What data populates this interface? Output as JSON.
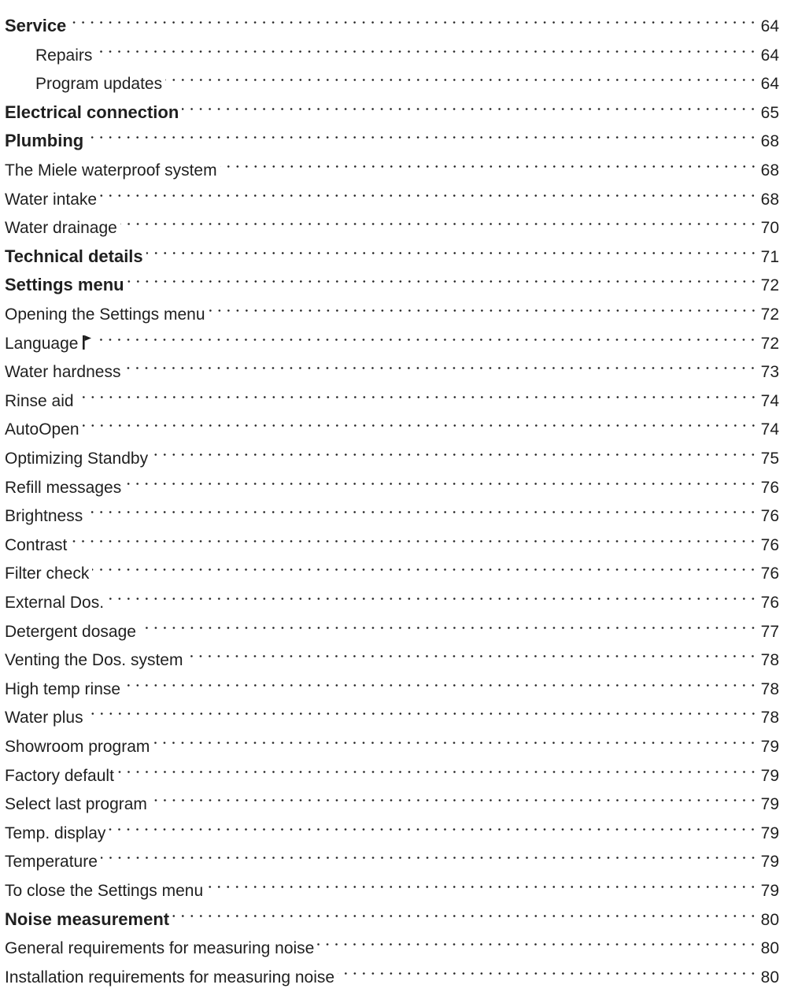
{
  "toc": [
    {
      "label": "Service",
      "page": "64",
      "level": "heading"
    },
    {
      "label": "Repairs",
      "page": "64",
      "level": "sub"
    },
    {
      "label": "Program updates",
      "page": "64",
      "level": "sub"
    },
    {
      "label": "Electrical connection",
      "page": "65",
      "level": "heading"
    },
    {
      "label": "Plumbing",
      "page": "68",
      "level": "heading"
    },
    {
      "label": "The Miele waterproof system",
      "page": "68",
      "level": "item"
    },
    {
      "label": "Water intake",
      "page": "68",
      "level": "item"
    },
    {
      "label": "Water drainage",
      "page": "70",
      "level": "item"
    },
    {
      "label": "Technical details",
      "page": "71",
      "level": "heading"
    },
    {
      "label": "Settings menu",
      "page": "72",
      "level": "heading"
    },
    {
      "label": "Opening the Settings menu",
      "page": "72",
      "level": "item"
    },
    {
      "label": "Language",
      "page": "72",
      "level": "item",
      "icon": "flag-icon"
    },
    {
      "label": "Water hardness",
      "page": "73",
      "level": "item"
    },
    {
      "label": "Rinse aid",
      "page": "74",
      "level": "item"
    },
    {
      "label": "AutoOpen",
      "page": "74",
      "level": "item"
    },
    {
      "label": "Optimizing Standby",
      "page": "75",
      "level": "item"
    },
    {
      "label": "Refill messages",
      "page": "76",
      "level": "item"
    },
    {
      "label": "Brightness",
      "page": "76",
      "level": "item"
    },
    {
      "label": "Contrast",
      "page": "76",
      "level": "item"
    },
    {
      "label": "Filter check",
      "page": "76",
      "level": "item"
    },
    {
      "label": "External Dos.",
      "page": "76",
      "level": "item"
    },
    {
      "label": "Detergent dosage",
      "page": "77",
      "level": "item"
    },
    {
      "label": "Venting the Dos. system",
      "page": "78",
      "level": "item"
    },
    {
      "label": "High temp rinse",
      "page": "78",
      "level": "item"
    },
    {
      "label": "Water plus",
      "page": "78",
      "level": "item"
    },
    {
      "label": "Showroom program",
      "page": "79",
      "level": "item"
    },
    {
      "label": "Factory default",
      "page": "79",
      "level": "item"
    },
    {
      "label": "Select last program",
      "page": "79",
      "level": "item"
    },
    {
      "label": "Temp. display",
      "page": "79",
      "level": "item"
    },
    {
      "label": "Temperature",
      "page": "79",
      "level": "item"
    },
    {
      "label": "To close the Settings menu",
      "page": "79",
      "level": "item"
    },
    {
      "label": "Noise measurement",
      "page": "80",
      "level": "heading"
    },
    {
      "label": "General requirements for measuring noise",
      "page": "80",
      "level": "item"
    },
    {
      "label": "Installation requirements for measuring noise",
      "page": "80",
      "level": "item"
    }
  ]
}
